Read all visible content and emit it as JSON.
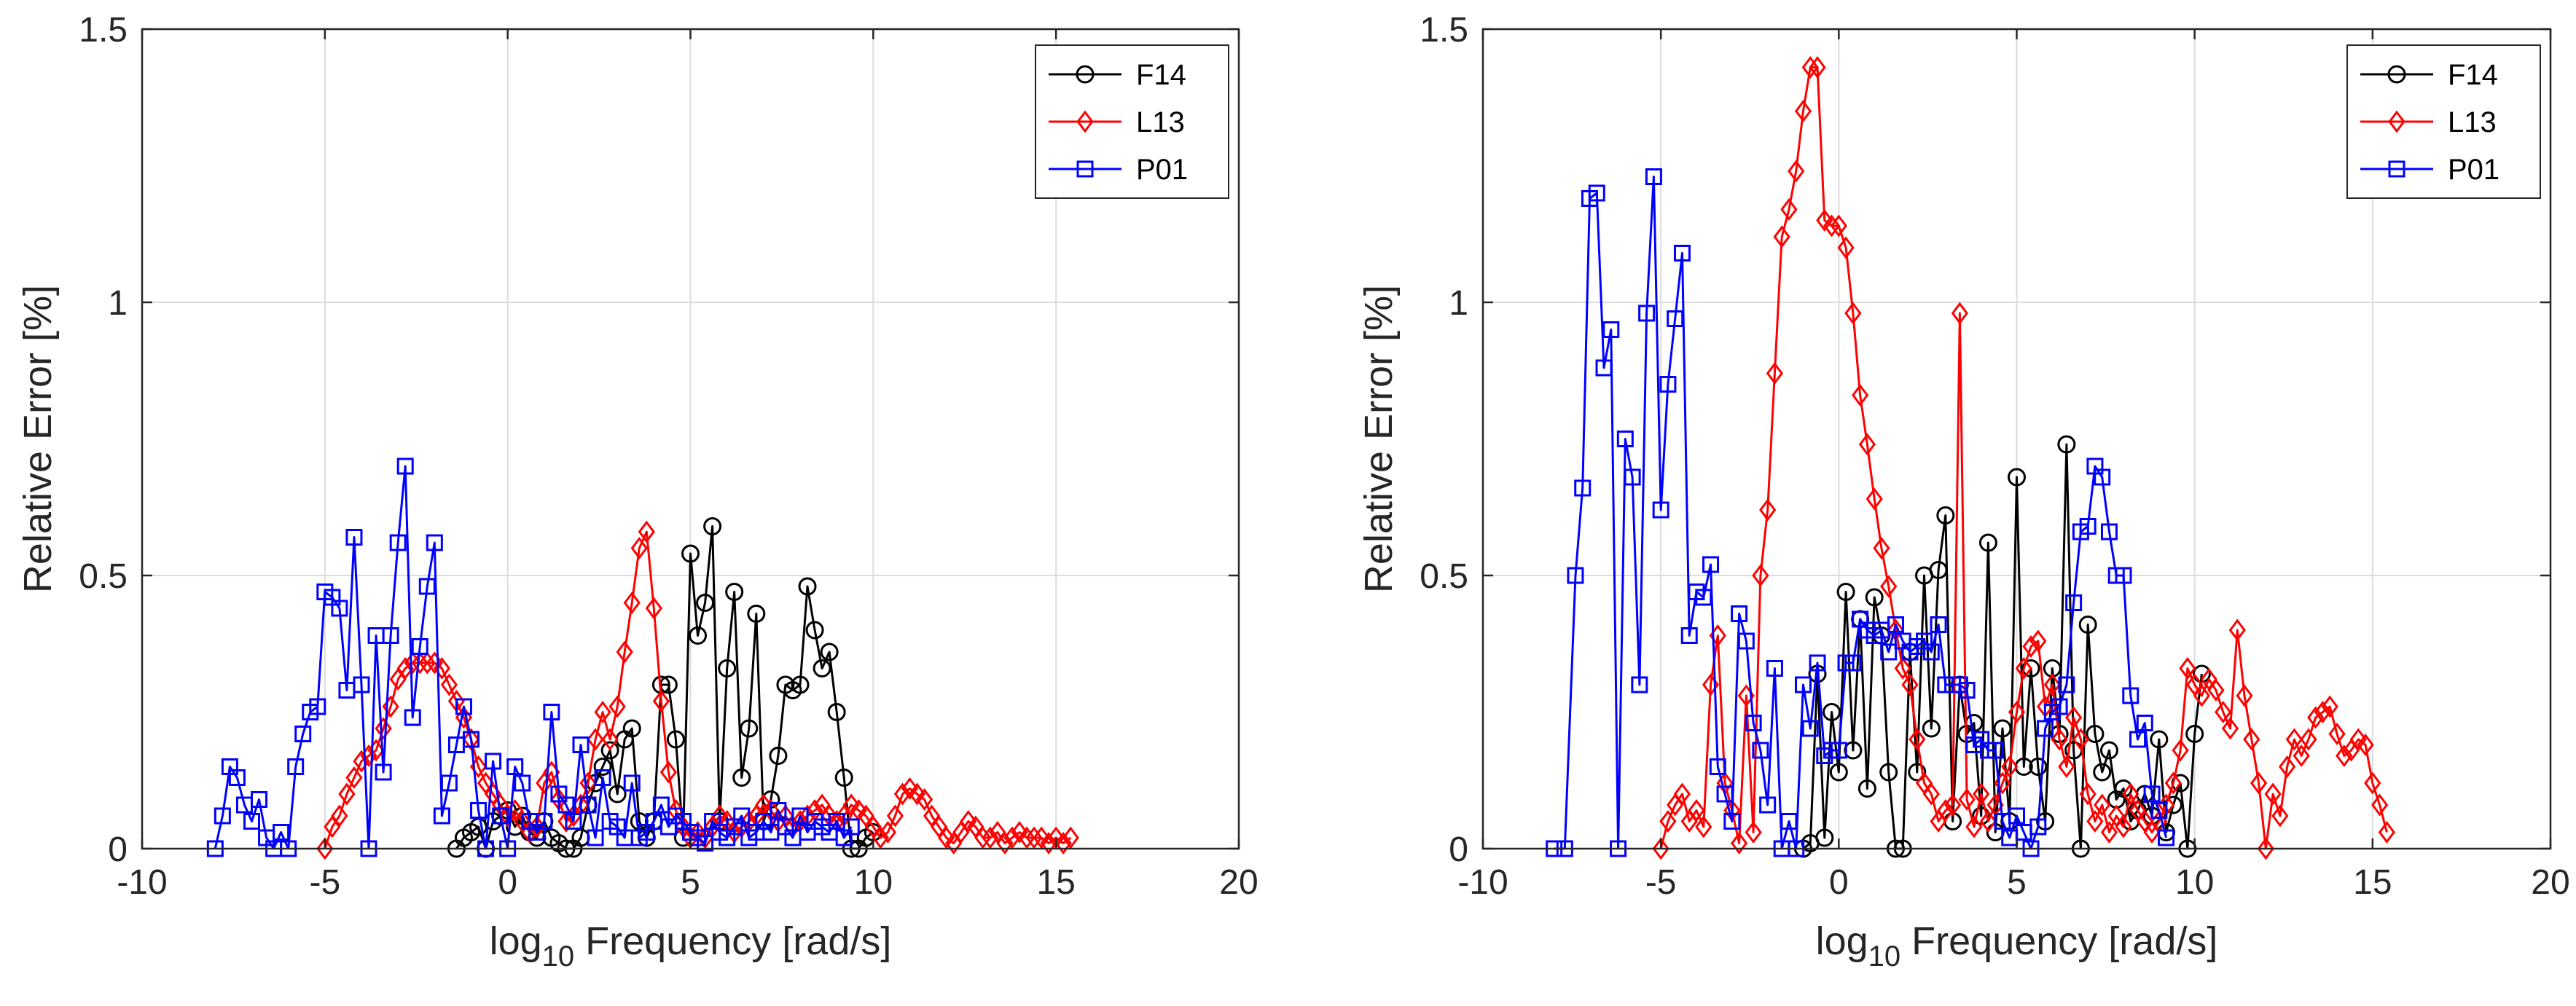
{
  "colors": {
    "F14": "#000000",
    "L13": "#ff0000",
    "P01": "#0000ff",
    "grid": "#dcdcdc",
    "axis": "#262626"
  },
  "chart_data": [
    {
      "type": "line",
      "xlabel_prefix": "log",
      "xlabel_sub": "10",
      "xlabel_suffix": " Frequency [rad/s]",
      "ylabel": "Relative Error [%]",
      "xlim": [
        -10,
        20
      ],
      "ylim": [
        0,
        1.5
      ],
      "xticks": [
        "-10",
        "-5",
        "0",
        "5",
        "10",
        "15",
        "20"
      ],
      "yticks": [
        "0",
        "0.5",
        "1",
        "1.5"
      ],
      "grid": true,
      "legend_position": "top-right",
      "series": [
        {
          "name": "F14",
          "marker": "circle",
          "x": [
            -1.4,
            -1.2,
            -1.0,
            -0.8,
            -0.6,
            -0.4,
            -0.2,
            0.0,
            0.2,
            0.4,
            0.6,
            0.8,
            1.0,
            1.2,
            1.4,
            1.6,
            1.8,
            2.0,
            2.2,
            2.4,
            2.6,
            2.8,
            3.0,
            3.2,
            3.4,
            3.6,
            3.8,
            4.0,
            4.2,
            4.4,
            4.6,
            4.8,
            5.0,
            5.2,
            5.4,
            5.6,
            5.8,
            6.0,
            6.2,
            6.4,
            6.6,
            6.8,
            7.0,
            7.2,
            7.4,
            7.6,
            7.8,
            8.0,
            8.2,
            8.4,
            8.6,
            8.8,
            9.0,
            9.2,
            9.4,
            9.6,
            9.8,
            10.0
          ],
          "y": [
            0.0,
            0.02,
            0.03,
            0.04,
            0.0,
            0.05,
            0.06,
            0.07,
            0.04,
            0.06,
            0.03,
            0.02,
            0.05,
            0.02,
            0.01,
            0.0,
            0.0,
            0.02,
            0.08,
            0.12,
            0.15,
            0.18,
            0.1,
            0.2,
            0.22,
            0.05,
            0.02,
            0.05,
            0.3,
            0.3,
            0.2,
            0.02,
            0.54,
            0.39,
            0.45,
            0.59,
            0.05,
            0.33,
            0.47,
            0.13,
            0.22,
            0.43,
            0.05,
            0.09,
            0.17,
            0.3,
            0.29,
            0.3,
            0.48,
            0.4,
            0.33,
            0.36,
            0.25,
            0.13,
            0.0,
            0.0,
            0.02,
            0.03
          ]
        },
        {
          "name": "L13",
          "marker": "diamond",
          "x": [
            -5.0,
            -4.8,
            -4.6,
            -4.4,
            -4.2,
            -4.0,
            -3.8,
            -3.6,
            -3.4,
            -3.2,
            -3.0,
            -2.8,
            -2.6,
            -2.4,
            -2.2,
            -2.0,
            -1.8,
            -1.6,
            -1.4,
            -1.2,
            -1.0,
            -0.8,
            -0.6,
            -0.4,
            -0.2,
            0.0,
            0.2,
            0.4,
            0.6,
            0.8,
            1.0,
            1.2,
            1.4,
            1.6,
            1.8,
            2.0,
            2.2,
            2.4,
            2.6,
            2.8,
            3.0,
            3.2,
            3.4,
            3.6,
            3.8,
            4.0,
            4.2,
            4.4,
            4.6,
            4.8,
            5.0,
            5.2,
            5.4,
            5.6,
            5.8,
            6.0,
            6.2,
            6.4,
            6.6,
            6.8,
            7.0,
            7.2,
            7.4,
            7.6,
            7.8,
            8.0,
            8.2,
            8.4,
            8.6,
            8.8,
            9.0,
            9.2,
            9.4,
            9.6,
            9.8,
            10.0,
            10.2,
            10.4,
            10.6,
            10.8,
            11.0,
            11.2,
            11.4,
            11.6,
            11.8,
            12.0,
            12.2,
            12.4,
            12.6,
            12.8,
            13.0,
            13.2,
            13.4,
            13.6,
            13.8,
            14.0,
            14.2,
            14.4,
            14.6,
            14.8,
            15.0,
            15.2,
            15.4
          ],
          "y": [
            0.0,
            0.04,
            0.06,
            0.1,
            0.13,
            0.16,
            0.17,
            0.18,
            0.22,
            0.26,
            0.31,
            0.33,
            0.34,
            0.34,
            0.34,
            0.34,
            0.33,
            0.3,
            0.27,
            0.24,
            0.2,
            0.15,
            0.12,
            0.1,
            0.08,
            0.06,
            0.07,
            0.05,
            0.03,
            0.04,
            0.12,
            0.14,
            0.09,
            0.05,
            0.06,
            0.08,
            0.12,
            0.2,
            0.25,
            0.2,
            0.26,
            0.36,
            0.45,
            0.55,
            0.58,
            0.44,
            0.27,
            0.14,
            0.07,
            0.04,
            0.02,
            0.03,
            0.02,
            0.04,
            0.06,
            0.05,
            0.03,
            0.04,
            0.05,
            0.06,
            0.08,
            0.07,
            0.05,
            0.06,
            0.04,
            0.05,
            0.06,
            0.07,
            0.08,
            0.06,
            0.05,
            0.06,
            0.08,
            0.07,
            0.06,
            0.04,
            0.02,
            0.03,
            0.06,
            0.1,
            0.11,
            0.1,
            0.09,
            0.06,
            0.04,
            0.02,
            0.01,
            0.03,
            0.05,
            0.04,
            0.02,
            0.02,
            0.03,
            0.01,
            0.02,
            0.03,
            0.02,
            0.02,
            0.02,
            0.01,
            0.02,
            0.01,
            0.02
          ]
        },
        {
          "name": "P01",
          "marker": "square",
          "x": [
            -8.0,
            -7.8,
            -7.6,
            -7.4,
            -7.2,
            -7.0,
            -6.8,
            -6.6,
            -6.4,
            -6.2,
            -6.0,
            -5.8,
            -5.6,
            -5.4,
            -5.2,
            -5.0,
            -4.8,
            -4.6,
            -4.4,
            -4.2,
            -4.0,
            -3.8,
            -3.6,
            -3.4,
            -3.2,
            -3.0,
            -2.8,
            -2.6,
            -2.4,
            -2.2,
            -2.0,
            -1.8,
            -1.6,
            -1.4,
            -1.2,
            -1.0,
            -0.8,
            -0.6,
            -0.4,
            -0.2,
            0.0,
            0.2,
            0.4,
            0.6,
            0.8,
            1.0,
            1.2,
            1.4,
            1.6,
            1.8,
            2.0,
            2.2,
            2.4,
            2.6,
            2.8,
            3.0,
            3.2,
            3.4,
            3.6,
            3.8,
            4.0,
            4.2,
            4.4,
            4.6,
            4.8,
            5.0,
            5.2,
            5.4,
            5.6,
            5.8,
            6.0,
            6.2,
            6.4,
            6.6,
            6.8,
            7.0,
            7.2,
            7.4,
            7.6,
            7.8,
            8.0,
            8.2,
            8.4,
            8.6,
            8.8,
            9.0,
            9.2,
            9.4
          ],
          "y": [
            0.0,
            0.06,
            0.15,
            0.13,
            0.08,
            0.05,
            0.09,
            0.02,
            0.0,
            0.03,
            0.0,
            0.15,
            0.21,
            0.25,
            0.26,
            0.47,
            0.46,
            0.44,
            0.29,
            0.57,
            0.3,
            0.0,
            0.39,
            0.14,
            0.39,
            0.56,
            0.7,
            0.24,
            0.37,
            0.48,
            0.56,
            0.06,
            0.12,
            0.19,
            0.26,
            0.2,
            0.07,
            0.0,
            0.16,
            0.06,
            0.0,
            0.15,
            0.12,
            0.05,
            0.03,
            0.05,
            0.25,
            0.1,
            0.08,
            0.05,
            0.19,
            0.08,
            0.02,
            0.13,
            0.05,
            0.04,
            0.02,
            0.12,
            0.02,
            0.03,
            0.05,
            0.08,
            0.04,
            0.06,
            0.05,
            0.03,
            0.02,
            0.01,
            0.05,
            0.03,
            0.02,
            0.04,
            0.06,
            0.02,
            0.03,
            0.05,
            0.03,
            0.07,
            0.04,
            0.02,
            0.06,
            0.03,
            0.05,
            0.04,
            0.03,
            0.05,
            0.02,
            0.04
          ]
        }
      ]
    },
    {
      "type": "line",
      "xlabel_prefix": "log",
      "xlabel_sub": "10",
      "xlabel_suffix": " Frequency [rad/s]",
      "ylabel": "Relative Error [%]",
      "xlim": [
        -10,
        20
      ],
      "ylim": [
        0,
        1.5
      ],
      "xticks": [
        "-10",
        "-5",
        "0",
        "5",
        "10",
        "15",
        "20"
      ],
      "yticks": [
        "0",
        "0.5",
        "1",
        "1.5"
      ],
      "grid": true,
      "legend_position": "top-right",
      "series": [
        {
          "name": "F14",
          "marker": "circle",
          "x": [
            -1.0,
            -0.8,
            -0.6,
            -0.4,
            -0.2,
            0.0,
            0.2,
            0.4,
            0.6,
            0.8,
            1.0,
            1.2,
            1.4,
            1.6,
            1.8,
            2.0,
            2.2,
            2.4,
            2.6,
            2.8,
            3.0,
            3.2,
            3.4,
            3.6,
            3.8,
            4.0,
            4.2,
            4.4,
            4.6,
            4.8,
            5.0,
            5.2,
            5.4,
            5.6,
            5.8,
            6.0,
            6.2,
            6.4,
            6.6,
            6.8,
            7.0,
            7.2,
            7.4,
            7.6,
            7.8,
            8.0,
            8.2,
            8.4,
            8.6,
            8.8,
            9.0,
            9.2,
            9.4,
            9.6,
            9.8,
            10.0,
            10.2
          ],
          "y": [
            0.0,
            0.01,
            0.32,
            0.02,
            0.25,
            0.14,
            0.47,
            0.18,
            0.42,
            0.11,
            0.46,
            0.39,
            0.14,
            0.0,
            0.0,
            0.36,
            0.14,
            0.5,
            0.22,
            0.51,
            0.61,
            0.05,
            0.3,
            0.21,
            0.23,
            0.06,
            0.56,
            0.03,
            0.22,
            0.05,
            0.68,
            0.15,
            0.33,
            0.15,
            0.05,
            0.33,
            0.21,
            0.74,
            0.18,
            0.0,
            0.41,
            0.21,
            0.14,
            0.18,
            0.09,
            0.11,
            0.05,
            0.07,
            0.1,
            0.06,
            0.2,
            0.03,
            0.08,
            0.12,
            0.0,
            0.21,
            0.32
          ]
        },
        {
          "name": "L13",
          "marker": "diamond",
          "x": [
            -5.0,
            -4.8,
            -4.6,
            -4.4,
            -4.2,
            -4.0,
            -3.8,
            -3.6,
            -3.4,
            -3.2,
            -3.0,
            -2.8,
            -2.6,
            -2.4,
            -2.2,
            -2.0,
            -1.8,
            -1.6,
            -1.4,
            -1.2,
            -1.0,
            -0.8,
            -0.6,
            -0.4,
            -0.2,
            0.0,
            0.2,
            0.4,
            0.6,
            0.8,
            1.0,
            1.2,
            1.4,
            1.6,
            1.8,
            2.0,
            2.2,
            2.4,
            2.6,
            2.8,
            3.0,
            3.2,
            3.4,
            3.6,
            3.8,
            4.0,
            4.2,
            4.4,
            4.6,
            4.8,
            5.0,
            5.2,
            5.4,
            5.6,
            5.8,
            6.0,
            6.2,
            6.4,
            6.6,
            6.8,
            7.0,
            7.2,
            7.4,
            7.6,
            7.8,
            8.0,
            8.2,
            8.4,
            8.6,
            8.8,
            9.0,
            9.2,
            9.4,
            9.6,
            9.8,
            10.0,
            10.2,
            10.4,
            10.6,
            10.8,
            11.0,
            11.2,
            11.4,
            11.6,
            11.8,
            12.0,
            12.2,
            12.4,
            12.6,
            12.8,
            13.0,
            13.2,
            13.4,
            13.6,
            13.8,
            14.0,
            14.2,
            14.4,
            14.6,
            14.8,
            15.0,
            15.2,
            15.4
          ],
          "y": [
            0.0,
            0.05,
            0.08,
            0.1,
            0.05,
            0.07,
            0.04,
            0.3,
            0.39,
            0.12,
            0.07,
            0.01,
            0.28,
            0.03,
            0.5,
            0.62,
            0.87,
            1.12,
            1.17,
            1.24,
            1.35,
            1.43,
            1.43,
            1.15,
            1.14,
            1.14,
            1.1,
            0.98,
            0.83,
            0.74,
            0.64,
            0.55,
            0.48,
            0.4,
            0.33,
            0.3,
            0.2,
            0.12,
            0.1,
            0.05,
            0.07,
            0.08,
            0.98,
            0.09,
            0.04,
            0.1,
            0.05,
            0.08,
            0.12,
            0.15,
            0.25,
            0.33,
            0.37,
            0.38,
            0.26,
            0.3,
            0.2,
            0.15,
            0.24,
            0.2,
            0.1,
            0.05,
            0.08,
            0.03,
            0.06,
            0.04,
            0.1,
            0.07,
            0.05,
            0.03,
            0.05,
            0.08,
            0.12,
            0.18,
            0.33,
            0.3,
            0.28,
            0.31,
            0.29,
            0.25,
            0.22,
            0.4,
            0.28,
            0.2,
            0.12,
            0.0,
            0.1,
            0.06,
            0.15,
            0.2,
            0.17,
            0.2,
            0.24,
            0.25,
            0.26,
            0.21,
            0.17,
            0.18,
            0.2,
            0.19,
            0.12,
            0.08,
            0.03
          ]
        },
        {
          "name": "P01",
          "marker": "square",
          "x": [
            -8.0,
            -7.7,
            -7.4,
            -7.2,
            -7.0,
            -6.8,
            -6.6,
            -6.4,
            -6.2,
            -6.0,
            -5.8,
            -5.6,
            -5.4,
            -5.2,
            -5.0,
            -4.8,
            -4.6,
            -4.4,
            -4.2,
            -4.0,
            -3.8,
            -3.6,
            -3.4,
            -3.2,
            -3.0,
            -2.8,
            -2.6,
            -2.4,
            -2.2,
            -2.0,
            -1.8,
            -1.6,
            -1.4,
            -1.2,
            -1.0,
            -0.8,
            -0.6,
            -0.4,
            -0.2,
            0.0,
            0.2,
            0.4,
            0.6,
            0.8,
            1.0,
            1.2,
            1.4,
            1.6,
            1.8,
            2.0,
            2.2,
            2.4,
            2.6,
            2.8,
            3.0,
            3.2,
            3.4,
            3.6,
            3.8,
            4.0,
            4.2,
            4.4,
            4.6,
            4.8,
            5.0,
            5.2,
            5.4,
            5.6,
            5.8,
            6.0,
            6.2,
            6.4,
            6.6,
            6.8,
            7.0,
            7.2,
            7.4,
            7.6,
            7.8,
            8.0,
            8.2,
            8.4,
            8.6,
            8.8,
            9.0,
            9.2
          ],
          "y": [
            0.0,
            0.0,
            0.5,
            0.66,
            1.19,
            1.2,
            0.88,
            0.95,
            0.0,
            0.75,
            0.68,
            0.3,
            0.98,
            1.23,
            0.62,
            0.85,
            0.97,
            1.09,
            0.39,
            0.47,
            0.46,
            0.52,
            0.15,
            0.1,
            0.05,
            0.43,
            0.38,
            0.23,
            0.18,
            0.08,
            0.33,
            0.0,
            0.05,
            0.0,
            0.3,
            0.22,
            0.34,
            0.17,
            0.18,
            0.18,
            0.34,
            0.34,
            0.42,
            0.4,
            0.39,
            0.4,
            0.36,
            0.41,
            0.38,
            0.36,
            0.37,
            0.38,
            0.36,
            0.41,
            0.3,
            0.3,
            0.3,
            0.29,
            0.19,
            0.2,
            0.18,
            0.18,
            0.05,
            0.02,
            0.06,
            0.03,
            0.0,
            0.04,
            0.22,
            0.25,
            0.26,
            0.3,
            0.45,
            0.58,
            0.59,
            0.7,
            0.68,
            0.58,
            0.5,
            0.5,
            0.28,
            0.2,
            0.23,
            0.1,
            0.07,
            0.02
          ]
        }
      ]
    }
  ]
}
